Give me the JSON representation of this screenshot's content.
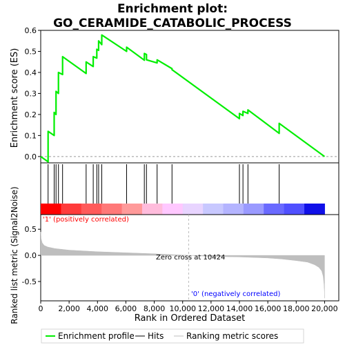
{
  "chart_data": {
    "type": "line",
    "title_lines": [
      "Enrichment plot:",
      "GO_CERAMIDE_CATABOLIC_PROCESS"
    ],
    "top_panel": {
      "ylabel": "Enrichment score (ES)",
      "ylim": [
        -0.03,
        0.6
      ],
      "yticks": [
        "0.0",
        "0.1",
        "0.2",
        "0.3",
        "0.4",
        "0.5",
        "0.6"
      ],
      "ytick_values": [
        0.0,
        0.1,
        0.2,
        0.3,
        0.4,
        0.5,
        0.6
      ],
      "series": [
        {
          "name": "Enrichment profile",
          "color": "#00ee00",
          "x": [
            0,
            520,
            520,
            950,
            950,
            1080,
            1080,
            1250,
            1250,
            1540,
            1540,
            3200,
            3200,
            3700,
            3700,
            3950,
            3950,
            4080,
            4080,
            4300,
            4300,
            6050,
            6050,
            7300,
            7300,
            7450,
            7450,
            8200,
            8200,
            9250,
            9250,
            14000,
            14000,
            14250,
            14250,
            14600,
            14600,
            16800,
            16800,
            20000
          ],
          "y": [
            0.0,
            -0.025,
            0.12,
            0.1,
            0.21,
            0.2,
            0.31,
            0.3,
            0.4,
            0.39,
            0.475,
            0.395,
            0.45,
            0.428,
            0.475,
            0.468,
            0.51,
            0.505,
            0.55,
            0.532,
            0.578,
            0.5,
            0.52,
            0.458,
            0.49,
            0.485,
            0.46,
            0.445,
            0.46,
            0.418,
            0.413,
            0.18,
            0.205,
            0.195,
            0.215,
            0.205,
            0.222,
            0.11,
            0.158,
            0.0
          ]
        }
      ]
    },
    "hits": {
      "name": "Hits",
      "color": "#000000",
      "x": [
        520,
        950,
        1080,
        1250,
        1540,
        3200,
        3700,
        3950,
        4080,
        4300,
        6050,
        7300,
        7450,
        8200,
        9250,
        14000,
        14250,
        14600,
        16800
      ]
    },
    "bottom_panel": {
      "name": "Ranking metric scores",
      "ylabel": "Ranked list metric (Signal2Noise)",
      "ylim": [
        -0.87,
        0.78
      ],
      "yticks": [
        "-0.5",
        "0.0",
        "0.5"
      ],
      "ytick_values": [
        -0.5,
        0.0,
        0.5
      ],
      "xlabel": "Rank in Ordered Dataset",
      "xlim": [
        0,
        21000
      ],
      "xticks": [
        "0",
        "2,000",
        "4,000",
        "6,000",
        "8,000",
        "10,000",
        "12,000",
        "14,000",
        "16,000",
        "18,000",
        "20,000"
      ],
      "xtick_values": [
        0,
        2000,
        4000,
        6000,
        8000,
        10000,
        12000,
        14000,
        16000,
        18000,
        20000
      ],
      "metric_color": "#bebebe",
      "zero_cross_rank": 10424,
      "profile_x": [
        0,
        30,
        100,
        250,
        500,
        1000,
        2000,
        4000,
        6000,
        8000,
        10424,
        12000,
        14000,
        16000,
        17000,
        18000,
        18800,
        19300,
        19600,
        19800,
        19900,
        19960,
        19990,
        20000
      ],
      "profile_y": [
        0.45,
        0.32,
        0.24,
        0.19,
        0.16,
        0.13,
        0.1,
        0.07,
        0.05,
        0.03,
        0.0,
        -0.02,
        -0.03,
        -0.05,
        -0.07,
        -0.1,
        -0.13,
        -0.18,
        -0.23,
        -0.3,
        -0.4,
        -0.55,
        -0.7,
        -0.82
      ]
    },
    "annotations": {
      "positive": "'1' (positively correlated)",
      "positive_color": "#ff0000",
      "negative": "'0' (negatively correlated)",
      "negative_color": "#0000ff",
      "zero_cross": "Zero cross at 10424"
    },
    "colorbar_colors": [
      "#ff0000",
      "#ff3b3b",
      "#ff5a5a",
      "#ff7878",
      "#ff9a9a",
      "#ffbcdc",
      "#ffc8ff",
      "#e8d4ff",
      "#c8c8ff",
      "#b4b4ff",
      "#9a9aff",
      "#6a6aff",
      "#5050ff",
      "#1010e8"
    ],
    "legend": {
      "placement": "bottom",
      "items": [
        {
          "label": "Enrichment profile",
          "color": "#00ee00",
          "kind": "line"
        },
        {
          "label": "Hits",
          "color": "#000000",
          "kind": "line"
        },
        {
          "label": "Ranking metric scores",
          "color": "#bebebe",
          "kind": "line"
        }
      ]
    },
    "grid": false
  }
}
